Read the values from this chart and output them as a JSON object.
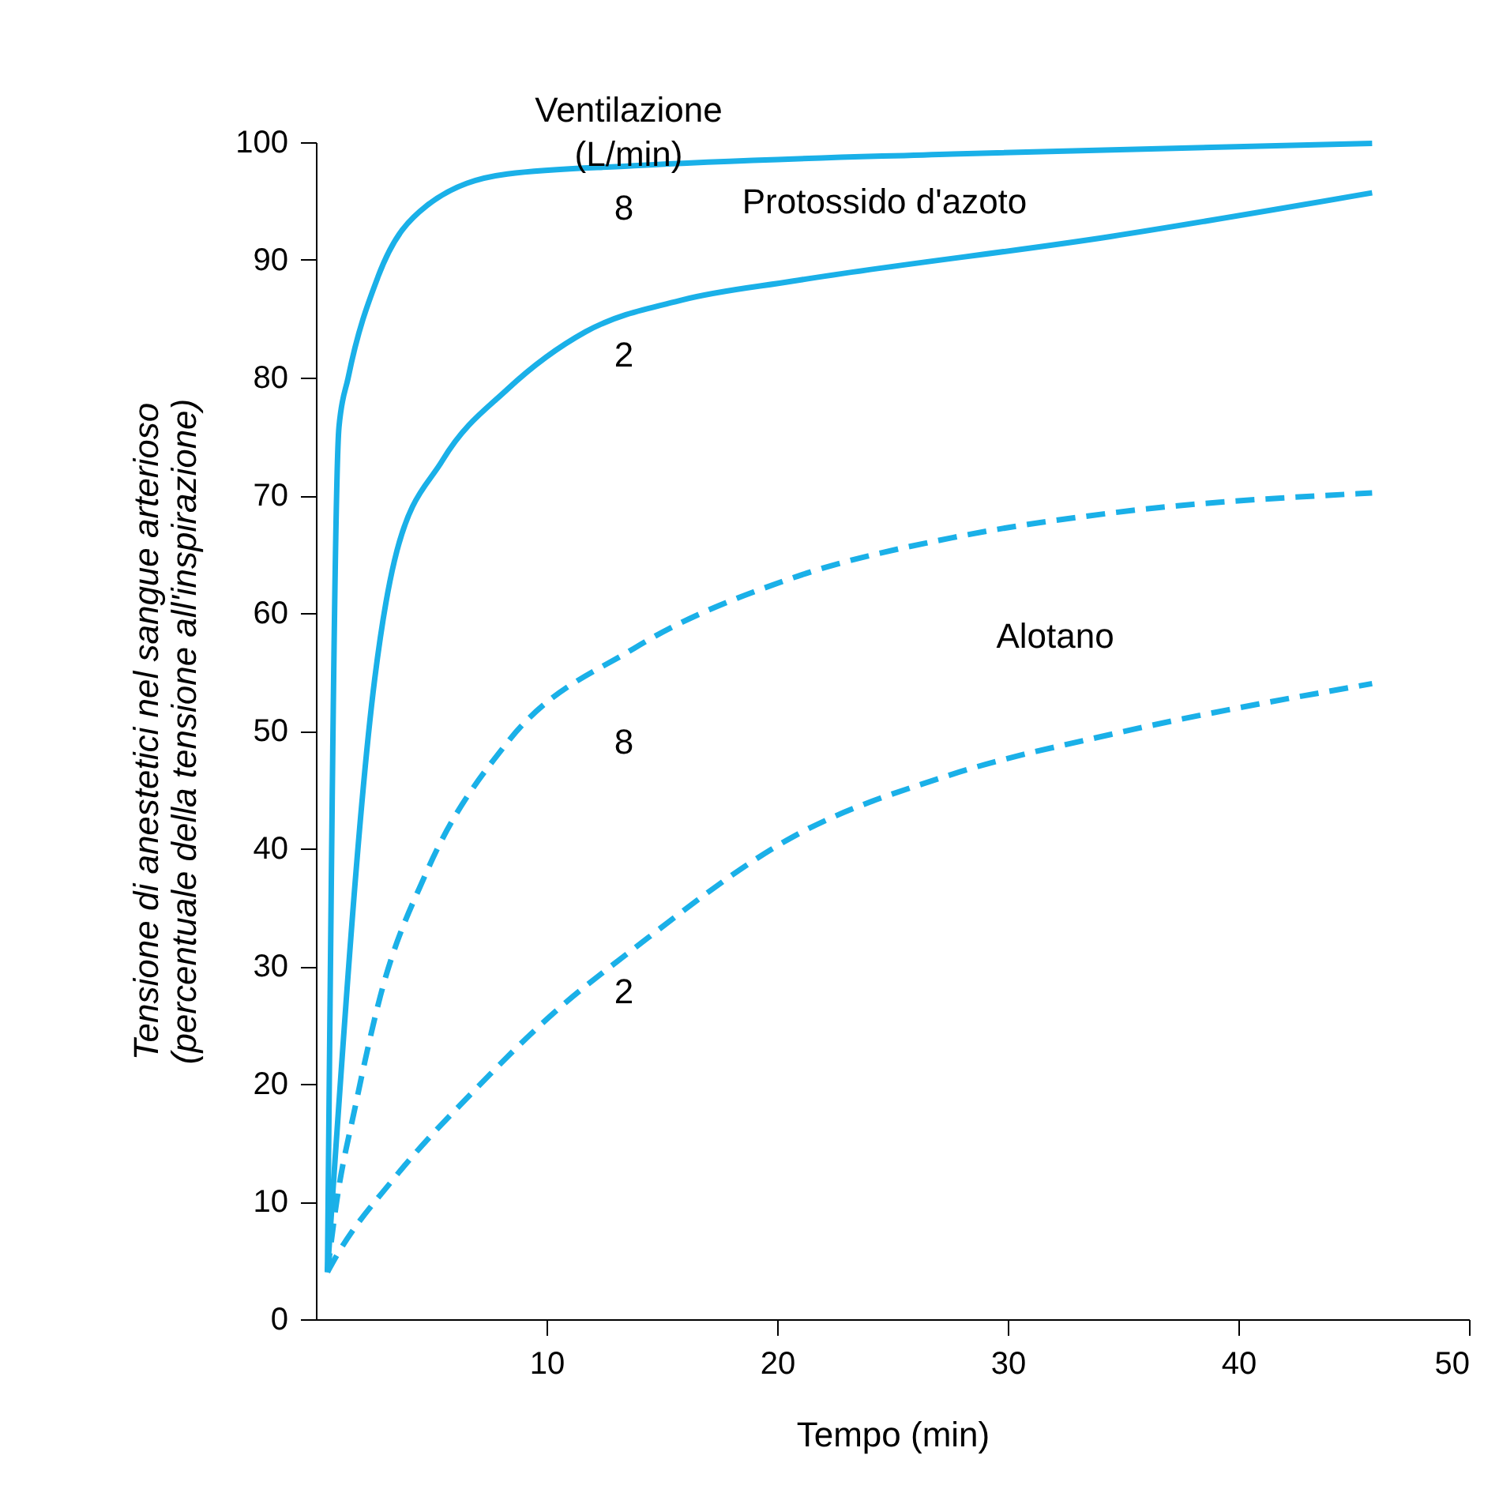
{
  "chart_data": {
    "type": "line",
    "xlabel": "Tempo (min)",
    "ylabel": "Tensione di anestetici nel sangue arterioso\n(percentuale della tensione all'inspirazione)",
    "xlim": [
      0,
      50
    ],
    "ylim": [
      0,
      100
    ],
    "xticks": [
      10,
      20,
      30,
      40,
      50
    ],
    "yticks": [
      0,
      10,
      20,
      30,
      40,
      50,
      60,
      70,
      80,
      90,
      100
    ],
    "grid": false,
    "marker": "none",
    "series": [
      {
        "color": "#1ab0e8",
        "line_style": "solid",
        "x": [
          0.5,
          1.0,
          1.4,
          2.7,
          4.8,
          8.3,
          13.8,
          27.6,
          45.8
        ],
        "values": [
          4,
          75.8,
          80,
          88.6,
          94.6,
          97.3,
          98,
          99,
          99.9
        ]
      },
      {
        "color": "#1ab0e8",
        "line_style": "solid",
        "x": [
          0.5,
          2.55,
          3.4,
          5.5,
          8.3,
          11.7,
          15.9,
          20.7,
          34.5,
          45.8
        ],
        "values": [
          4,
          54.4,
          64.4,
          73,
          79,
          83.9,
          86.6,
          88.2,
          92,
          95.7
        ]
      },
      {
        "color": "#1ab0e8",
        "line_style": "dashed",
        "x": [
          0.5,
          0.9,
          1.7,
          2.8,
          4.8,
          8.3,
          13.8,
          20.7,
          27.6,
          34.5,
          45.8
        ],
        "values": [
          4,
          10,
          18,
          27.5,
          38,
          49,
          57,
          63,
          66.4,
          68.5,
          70.2
        ]
      },
      {
        "color": "#1ab0e8",
        "line_style": "dashed",
        "x": [
          0.5,
          0.9,
          3.4,
          6.9,
          10.3,
          13.8,
          20.7,
          27.6,
          34.5,
          45.8
        ],
        "values": [
          4,
          5.4,
          12,
          19.5,
          26,
          31.5,
          41,
          46.3,
          49.7,
          54
        ]
      }
    ],
    "annotations": [
      "Ventilazione\n(L/min)",
      "8",
      "Protossido d'azoto",
      "2",
      "Alotano",
      "8",
      "2"
    ]
  }
}
